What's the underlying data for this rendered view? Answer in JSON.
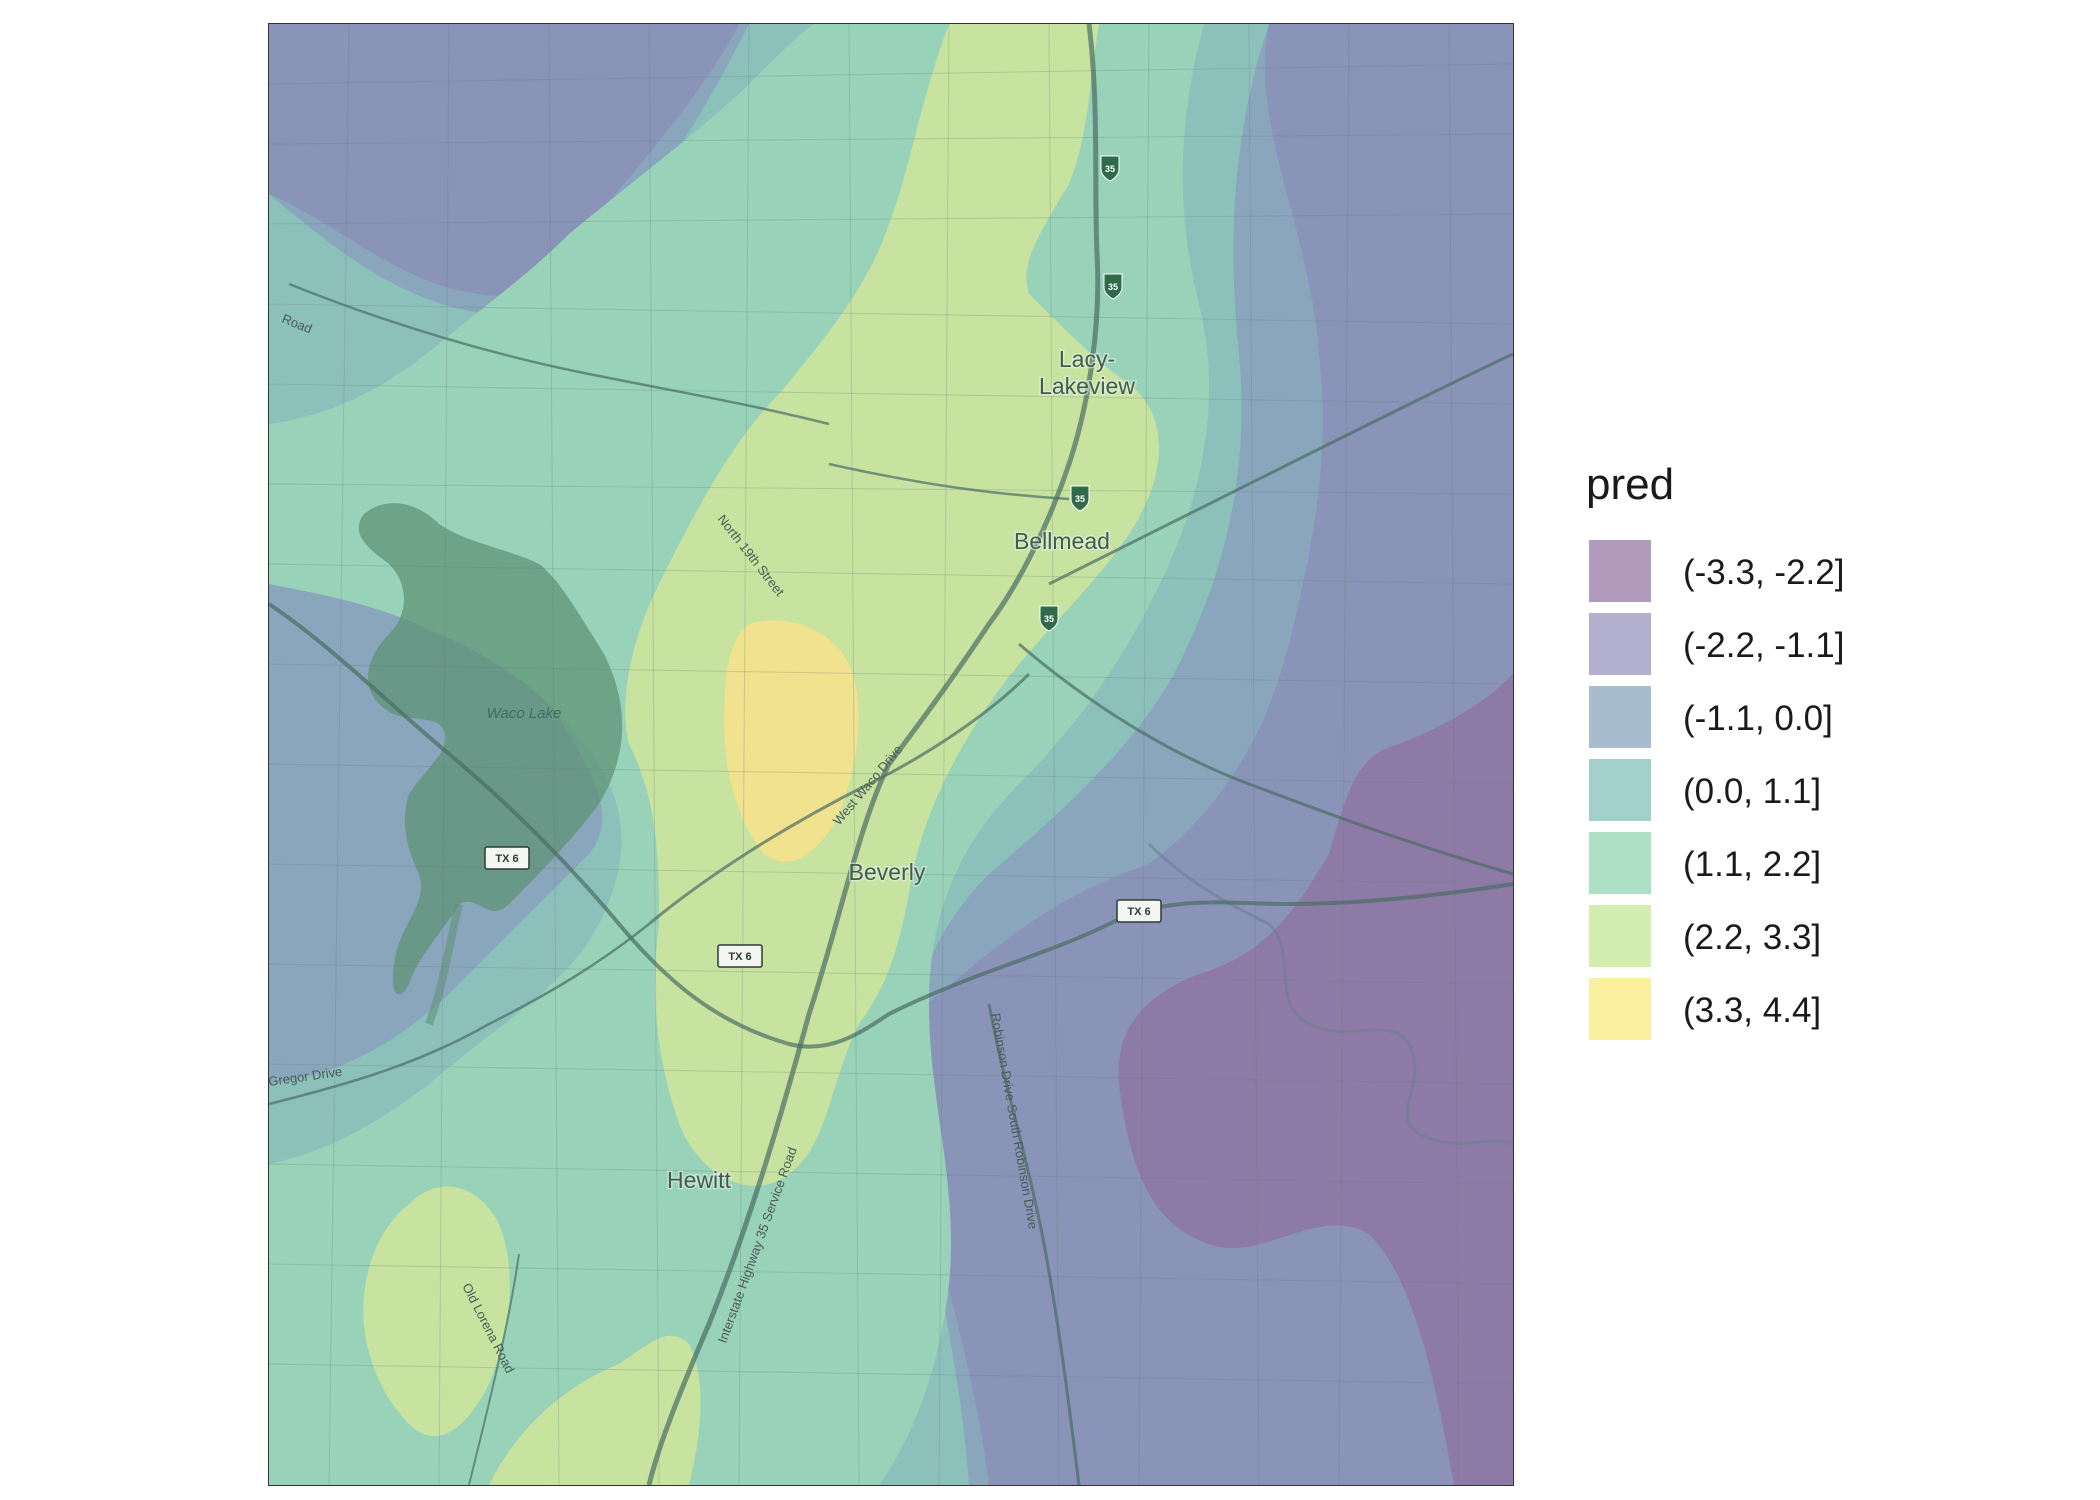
{
  "legend": {
    "title": "pred",
    "items": [
      {
        "label": "(-3.3, -2.2]",
        "color": "#b19bbd"
      },
      {
        "label": "(-2.2, -1.1]",
        "color": "#b3b0cf"
      },
      {
        "label": "(-1.1, 0.0]",
        "color": "#a8bcd0"
      },
      {
        "label": "(0.0, 1.1]",
        "color": "#a3d0cd"
      },
      {
        "label": "(1.1, 2.2]",
        "color": "#ade0c5"
      },
      {
        "label": "(2.2, 3.3]",
        "color": "#d4eeb0"
      },
      {
        "label": "(3.3, 4.4]",
        "color": "#faf0a0"
      }
    ]
  },
  "map": {
    "places": {
      "lacy_1": "Lacy-",
      "lacy_2": "Lakeview",
      "bellmead": "Bellmead",
      "beverly": "Beverly",
      "hewitt": "Hewitt"
    },
    "water": {
      "lake": "Waco Lake"
    },
    "roads": {
      "road_nw": "Road",
      "north_19th": "North 19th Street",
      "west_waco": "West Waco Drive",
      "mcgregor": "Gregor Drive",
      "robinson": "Robinson Drive South Robinson Drive",
      "i35_service": "Interstate Highway 35 Service Road",
      "old_lorena": "Old Lorena Road"
    },
    "shields": {
      "tx6": "TX 6",
      "i35": "35"
    },
    "zone_colors": {
      "z1": "#8d7aa6",
      "z2": "#8a93b8",
      "z3": "#89a6bd",
      "z4": "#8cc1bb",
      "z5": "#98d2b8",
      "z6": "#c8e3a0",
      "z7": "#f0e28e"
    }
  }
}
